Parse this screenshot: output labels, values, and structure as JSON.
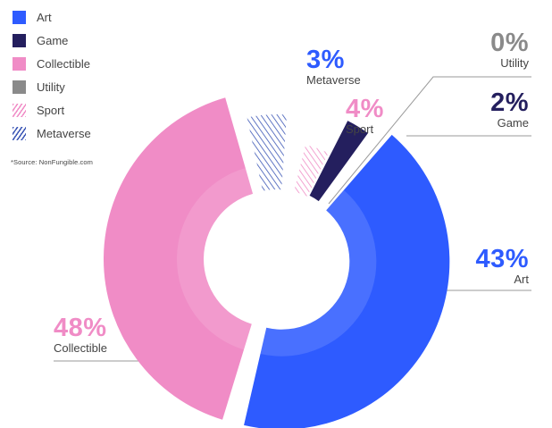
{
  "chart_data": {
    "type": "pie",
    "style": "donut",
    "source_note": "*Source:  NonFungible.com",
    "slices": [
      {
        "name": "Art",
        "value": 43,
        "label": "43%",
        "color": "#2E5BFF",
        "fill": "solid"
      },
      {
        "name": "Game",
        "value": 2,
        "label": "2%",
        "color": "#241F5E",
        "fill": "solid"
      },
      {
        "name": "Collectible",
        "value": 48,
        "label": "48%",
        "color": "#F08CC6",
        "fill": "solid"
      },
      {
        "name": "Utility",
        "value": 0,
        "label": "0%",
        "color": "#8A8A8A",
        "fill": "solid"
      },
      {
        "name": "Sport",
        "value": 4,
        "label": "4%",
        "color": "#F08CC6",
        "fill": "hatched"
      },
      {
        "name": "Metaverse",
        "value": 3,
        "label": "3%",
        "color": "#2E5BFF",
        "fill": "hatched"
      }
    ],
    "legend_placement": "top-left",
    "legend": [
      {
        "name": "Art",
        "color": "#2E5BFF",
        "fill": "solid"
      },
      {
        "name": "Game",
        "color": "#241F5E",
        "fill": "solid"
      },
      {
        "name": "Collectible",
        "color": "#F08CC6",
        "fill": "solid"
      },
      {
        "name": "Utility",
        "color": "#8A8A8A",
        "fill": "solid"
      },
      {
        "name": "Sport",
        "color": "#F08CC6",
        "fill": "hatched"
      },
      {
        "name": "Metaverse",
        "color": "#3A55B5",
        "fill": "hatched"
      }
    ]
  }
}
